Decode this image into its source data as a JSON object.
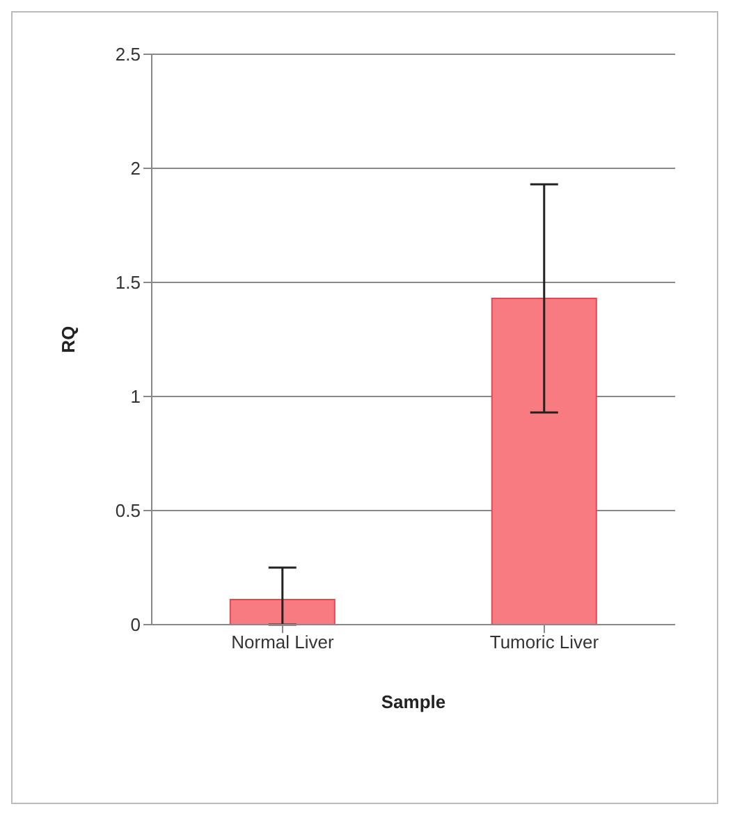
{
  "chart_data": {
    "type": "bar",
    "xlabel": "Sample",
    "ylabel": "RQ",
    "categories": [
      "Normal Liver",
      "Tumoric Liver"
    ],
    "values": [
      0.11,
      1.43
    ],
    "errors": [
      [
        0,
        0.25
      ],
      [
        0.93,
        1.93
      ]
    ],
    "color": "#f77b80",
    "ylim": [
      0,
      2.5
    ],
    "yticks": [
      0,
      0.5,
      1,
      1.5,
      2,
      2.5
    ],
    "grid": "y"
  }
}
